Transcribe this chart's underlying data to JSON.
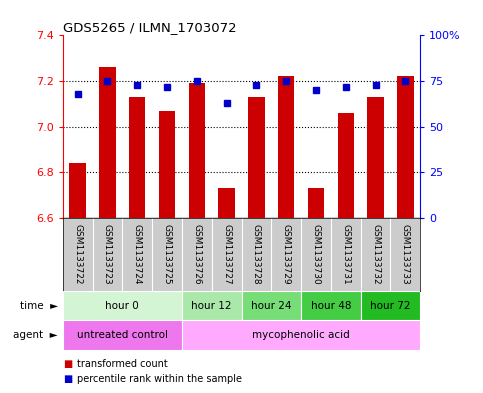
{
  "title": "GDS5265 / ILMN_1703072",
  "samples": [
    "GSM1133722",
    "GSM1133723",
    "GSM1133724",
    "GSM1133725",
    "GSM1133726",
    "GSM1133727",
    "GSM1133728",
    "GSM1133729",
    "GSM1133730",
    "GSM1133731",
    "GSM1133732",
    "GSM1133733"
  ],
  "transformed_count": [
    6.84,
    7.26,
    7.13,
    7.07,
    7.19,
    6.73,
    7.13,
    7.22,
    6.73,
    7.06,
    7.13,
    7.22
  ],
  "percentile_rank": [
    68,
    75,
    73,
    72,
    75,
    63,
    73,
    75,
    70,
    72,
    73,
    75
  ],
  "ylim_left": [
    6.6,
    7.4
  ],
  "ylim_right": [
    0,
    100
  ],
  "yticks_left": [
    6.6,
    6.8,
    7.0,
    7.2,
    7.4
  ],
  "yticks_right": [
    0,
    25,
    50,
    75,
    100
  ],
  "ytick_labels_right": [
    "0",
    "25",
    "50",
    "75",
    "100%"
  ],
  "bar_color": "#cc0000",
  "dot_color": "#0000cc",
  "time_groups": [
    {
      "label": "hour 0",
      "start": 0,
      "end": 3,
      "color": "#d4f5d4"
    },
    {
      "label": "hour 12",
      "start": 4,
      "end": 5,
      "color": "#aae8aa"
    },
    {
      "label": "hour 24",
      "start": 6,
      "end": 7,
      "color": "#77dd77"
    },
    {
      "label": "hour 48",
      "start": 8,
      "end": 9,
      "color": "#44cc44"
    },
    {
      "label": "hour 72",
      "start": 10,
      "end": 11,
      "color": "#22bb22"
    }
  ],
  "agent_groups": [
    {
      "label": "untreated control",
      "start": 0,
      "end": 3,
      "color": "#ee77ee"
    },
    {
      "label": "mycophenolic acid",
      "start": 4,
      "end": 11,
      "color": "#ffaaff"
    }
  ],
  "sample_bg_color": "#cccccc",
  "legend_bar_label": "transformed count",
  "legend_dot_label": "percentile rank within the sample"
}
